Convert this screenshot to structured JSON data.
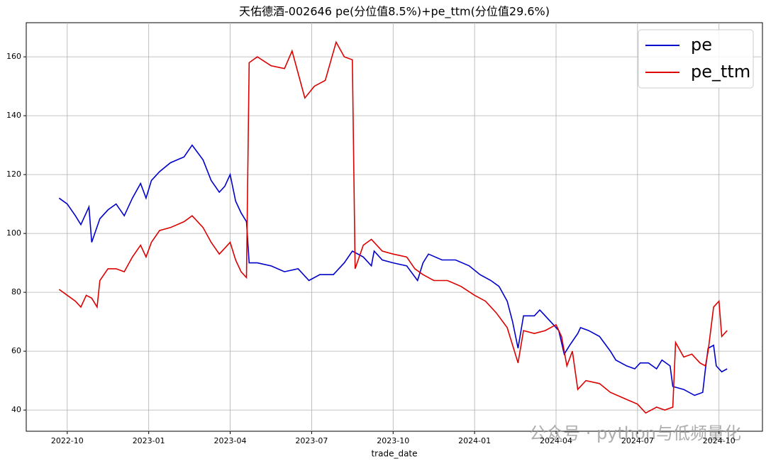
{
  "chart_data": {
    "type": "line",
    "title": "天佑德酒-002646 pe(分位值8.5%)+pe_ttm(分位值29.6%)",
    "x_label": "trade_date",
    "watermark": "公众号 · python与低频量化",
    "xlim": [
      -1.51,
      25.6
    ],
    "ylim": [
      32.8,
      171.6
    ],
    "xticks": [
      {
        "value": 0,
        "label": "2022-10"
      },
      {
        "value": 3,
        "label": "2023-01"
      },
      {
        "value": 6,
        "label": "2023-04"
      },
      {
        "value": 9,
        "label": "2023-07"
      },
      {
        "value": 12,
        "label": "2023-10"
      },
      {
        "value": 15,
        "label": "2024-01"
      },
      {
        "value": 18,
        "label": "2024-04"
      },
      {
        "value": 21,
        "label": "2024-07"
      },
      {
        "value": 24,
        "label": "2024-10"
      }
    ],
    "yticks": [
      40,
      60,
      80,
      100,
      120,
      140,
      160
    ],
    "grid": true,
    "legend": "upper right",
    "series": [
      {
        "name": "pe",
        "color": "#0000cc",
        "x": [
          -0.3,
          0,
          0.3,
          0.5,
          0.8,
          0.9,
          1.2,
          1.5,
          1.8,
          2.1,
          2.4,
          2.7,
          2.9,
          3.1,
          3.4,
          3.8,
          4.3,
          4.6,
          5.0,
          5.3,
          5.6,
          5.8,
          6.0,
          6.2,
          6.4,
          6.6,
          6.7,
          7.0,
          7.5,
          8.0,
          8.5,
          8.9,
          9.3,
          9.8,
          10.2,
          10.5,
          10.9,
          11.2,
          11.3,
          11.6,
          12.0,
          12.5,
          12.9,
          13.1,
          13.3,
          13.8,
          14.3,
          14.8,
          15.2,
          15.6,
          15.9,
          16.2,
          16.4,
          16.6,
          16.8,
          17.2,
          17.4,
          17.8,
          18.1,
          18.3,
          18.5,
          18.8,
          18.9,
          19.2,
          19.6,
          20.0,
          20.2,
          20.6,
          20.9,
          21.1,
          21.4,
          21.7,
          21.9,
          22.2,
          22.3,
          22.7,
          23.1,
          23.4,
          23.5,
          23.6,
          23.8,
          23.9,
          24.1,
          24.3
        ],
        "values": [
          112,
          110,
          106,
          103,
          109,
          97,
          105,
          108,
          110,
          106,
          112,
          117,
          112,
          118,
          121,
          124,
          126,
          130,
          125,
          118,
          114,
          116,
          120,
          111,
          107,
          104,
          90,
          90,
          89,
          87,
          88,
          84,
          86,
          86,
          90,
          94,
          92,
          89,
          94,
          91,
          90,
          89,
          84,
          90,
          93,
          91,
          91,
          89,
          86,
          84,
          82,
          77,
          70,
          61,
          72,
          72,
          74,
          70,
          67,
          59,
          62,
          66,
          68,
          67,
          65,
          60,
          57,
          55,
          54,
          56,
          56,
          54,
          57,
          55,
          48,
          47,
          45,
          46,
          54,
          61,
          62,
          55,
          53,
          54
        ]
      },
      {
        "name": "pe_ttm",
        "color": "#dd0000",
        "x": [
          -0.3,
          0,
          0.3,
          0.5,
          0.7,
          0.9,
          1.1,
          1.2,
          1.5,
          1.8,
          2.1,
          2.4,
          2.7,
          2.9,
          3.1,
          3.4,
          3.8,
          4.3,
          4.6,
          5.0,
          5.3,
          5.6,
          5.8,
          6.0,
          6.2,
          6.4,
          6.6,
          6.7,
          7.0,
          7.5,
          8.0,
          8.28,
          8.75,
          9.1,
          9.5,
          9.9,
          10.2,
          10.5,
          10.6,
          10.9,
          11.2,
          11.6,
          12.0,
          12.5,
          12.8,
          13.1,
          13.5,
          14.0,
          14.5,
          15.0,
          15.4,
          15.8,
          16.2,
          16.6,
          16.8,
          17.2,
          17.6,
          18.0,
          18.2,
          18.4,
          18.6,
          18.8,
          19.1,
          19.6,
          20.0,
          20.5,
          21.0,
          21.3,
          21.7,
          22.0,
          22.3,
          22.4,
          22.7,
          23.0,
          23.3,
          23.5,
          23.6,
          23.8,
          24.0,
          24.1,
          24.3
        ],
        "values": [
          81,
          79,
          77,
          75,
          79,
          78,
          75,
          84,
          88,
          88,
          87,
          92,
          96,
          92,
          97,
          101,
          102,
          104,
          106,
          102,
          97,
          93,
          95,
          97,
          91,
          87,
          85,
          158,
          160,
          157,
          156,
          162,
          146,
          150,
          152,
          165,
          160,
          159,
          88,
          96,
          98,
          94,
          93,
          92,
          88,
          86,
          84,
          84,
          82,
          79,
          77,
          73,
          68,
          56,
          67,
          66,
          67,
          69,
          65,
          55,
          60,
          47,
          50,
          49,
          46,
          44,
          42,
          39,
          41,
          40,
          41,
          63,
          58,
          59,
          56,
          55,
          60,
          75,
          77,
          65,
          67
        ]
      }
    ]
  }
}
